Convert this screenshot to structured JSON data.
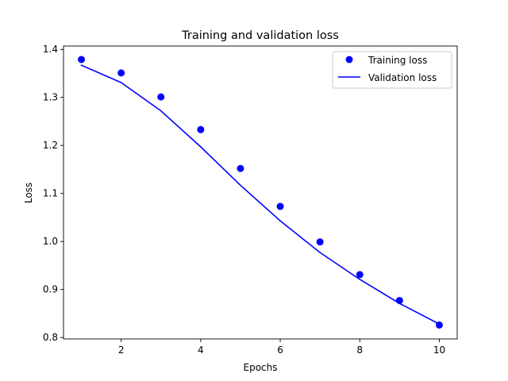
{
  "chart_data": {
    "type": "line",
    "title": "Training and validation loss",
    "xlabel": "Epochs",
    "ylabel": "Loss",
    "xlim": [
      0.55,
      10.45
    ],
    "ylim": [
      0.797,
      1.407
    ],
    "xticks": [
      2,
      4,
      6,
      8,
      10
    ],
    "xtick_labels": [
      "2",
      "4",
      "6",
      "8",
      "10"
    ],
    "yticks": [
      0.8,
      0.9,
      1.0,
      1.1,
      1.2,
      1.3,
      1.4
    ],
    "ytick_labels": [
      "0.8",
      "0.9",
      "1.0",
      "1.1",
      "1.2",
      "1.3",
      "1.4"
    ],
    "grid": false,
    "legend_position": "top-right",
    "x": [
      1,
      2,
      3,
      4,
      5,
      6,
      7,
      8,
      9,
      10
    ],
    "series": [
      {
        "name": "Training loss",
        "style": "points",
        "color": "#0000ff",
        "values": [
          1.379,
          1.351,
          1.301,
          1.233,
          1.152,
          1.073,
          0.999,
          0.931,
          0.877,
          0.826
        ]
      },
      {
        "name": "Validation loss",
        "style": "line",
        "color": "#0000ff",
        "values": [
          1.367,
          1.331,
          1.272,
          1.197,
          1.117,
          1.043,
          0.977,
          0.921,
          0.871,
          0.828
        ]
      }
    ]
  }
}
